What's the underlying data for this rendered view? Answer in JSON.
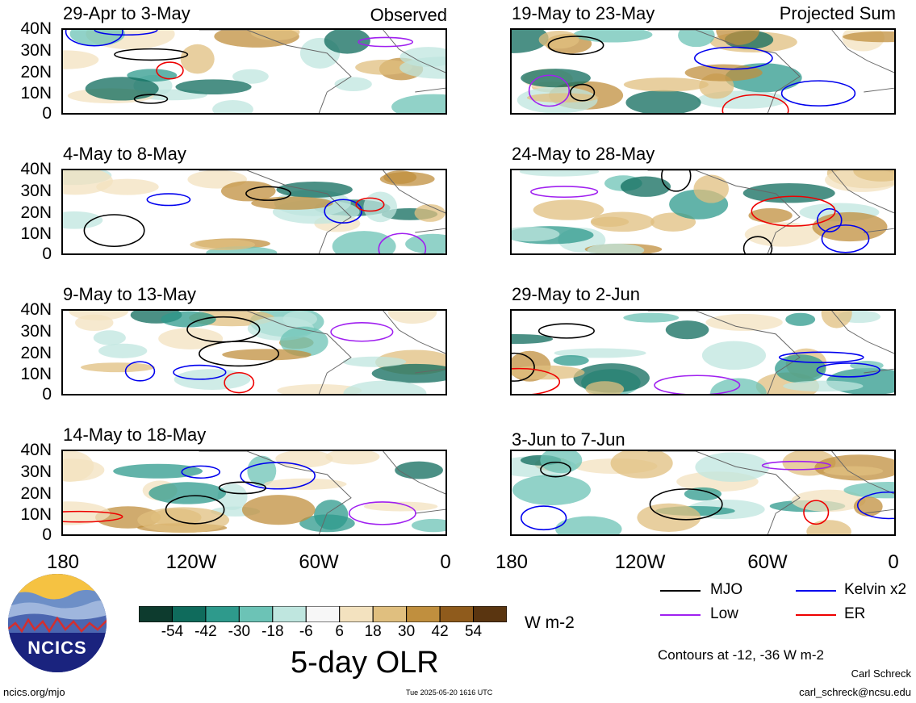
{
  "panels": {
    "left": [
      {
        "title": "29-Apr to 3-May",
        "tag": "Observed"
      },
      {
        "title": "4-May to 8-May",
        "tag": ""
      },
      {
        "title": "9-May to 13-May",
        "tag": ""
      },
      {
        "title": "14-May to 18-May",
        "tag": ""
      }
    ],
    "right": [
      {
        "title": "19-May to 23-May",
        "tag": "Projected Sum"
      },
      {
        "title": "24-May to 28-May",
        "tag": ""
      },
      {
        "title": "29-May to 2-Jun",
        "tag": ""
      },
      {
        "title": "3-Jun to 7-Jun",
        "tag": ""
      }
    ]
  },
  "axes": {
    "lat_labels": [
      "40N",
      "30N",
      "20N",
      "10N",
      "0"
    ],
    "lon_labels": [
      "180",
      "120W",
      "60W",
      "0"
    ]
  },
  "colorbar": {
    "ticks": [
      "-54",
      "-42",
      "-30",
      "-18",
      "-6",
      "6",
      "18",
      "30",
      "42",
      "54"
    ],
    "colors": [
      "#0d3b2e",
      "#0f6b5c",
      "#2e9a8c",
      "#6cc3b6",
      "#bfe6df",
      "#f7f7f7",
      "#f3e2bf",
      "#e0bf7f",
      "#c08f3e",
      "#8f5b1c",
      "#5a3510"
    ],
    "units": "W m-2",
    "title": "5-day OLR"
  },
  "contour_legend": {
    "items": [
      {
        "label": "MJO",
        "color": "#000000"
      },
      {
        "label": "Kelvin x2",
        "color": "#0000ee"
      },
      {
        "label": "Low",
        "color": "#a020f0"
      },
      {
        "label": "ER",
        "color": "#ee0000"
      }
    ],
    "note": "Contours at -12, -36 W m-2"
  },
  "footer": {
    "left": "ncics.org/mjo",
    "center": "Tue 2025-05-20 1616 UTC",
    "author": "Carl Schreck",
    "email": "carl_schreck@ncsu.edu",
    "logo_text": "NCICS"
  }
}
